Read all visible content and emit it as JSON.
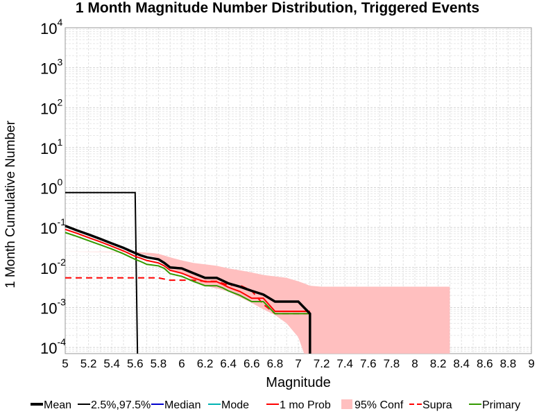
{
  "chart_data": {
    "type": "line",
    "title": "1 Month Magnitude Number Distribution, Triggered Events",
    "xlabel": "Magnitude",
    "ylabel": "1 Month Cumulative Number",
    "xlim": [
      5,
      9
    ],
    "ylim": [
      7e-05,
      10000
    ],
    "yscale": "log",
    "grid": true,
    "x_ticks": [
      5,
      5.2,
      5.4,
      5.6,
      5.8,
      6,
      6.2,
      6.4,
      6.6,
      6.8,
      7,
      7.2,
      7.4,
      7.6,
      7.8,
      8,
      8.2,
      8.4,
      8.6,
      8.8,
      9
    ],
    "x_tick_labels": [
      "5",
      "5.2",
      "5.4",
      "5.6",
      "5.8",
      "6",
      "6.2",
      "6.4",
      "6.6",
      "6.8",
      "7",
      "7.2",
      "7.4",
      "7.6",
      "7.8",
      "8",
      "8.2",
      "8.4",
      "8.6",
      "8.8",
      "9"
    ],
    "y_tick_exponents": [
      -4,
      -3,
      -2,
      -1,
      0,
      1,
      2,
      3,
      4
    ],
    "y_tick_base": "10",
    "legend_position": "bottom",
    "legend": [
      {
        "label": "Mean",
        "style": "thick-line",
        "color": "#000000"
      },
      {
        "label": "2.5%,97.5%",
        "style": "line",
        "color": "#000000"
      },
      {
        "label": "Median",
        "style": "line",
        "color": "#0000cc"
      },
      {
        "label": "Mode",
        "style": "line",
        "color": "#00b3b3"
      },
      {
        "label": "1 mo Prob",
        "style": "line",
        "color": "#ff0000"
      },
      {
        "label": "95% Conf",
        "style": "fill",
        "color": "#ffbfbf"
      },
      {
        "label": "Supra",
        "style": "dashed-line",
        "color": "#ff0000"
      },
      {
        "label": "Primary",
        "style": "line",
        "color": "#339900"
      }
    ],
    "series": [
      {
        "name": "95% Conf",
        "kind": "band",
        "color": "#ffbfbf",
        "x": [
          5.0,
          5.6,
          5.65,
          5.75,
          5.8,
          5.85,
          5.9,
          6.0,
          6.05,
          6.1,
          6.2,
          6.3,
          6.4,
          6.5,
          6.6,
          6.7,
          6.8,
          6.9,
          7.0,
          7.05,
          7.1,
          7.2,
          7.3,
          7.4,
          7.6,
          7.8,
          8.0,
          8.2,
          8.3
        ],
        "upper": [
          0.025,
          0.025,
          0.024,
          0.023,
          0.022,
          0.02,
          0.018,
          0.015,
          0.014,
          0.013,
          0.012,
          0.011,
          0.0095,
          0.0085,
          0.0075,
          0.0065,
          0.006,
          0.0055,
          0.0045,
          0.004,
          0.0035,
          0.0033,
          0.0033,
          0.0033,
          0.0033,
          0.0033,
          0.0033,
          0.0033,
          0.0033
        ],
        "lower": [
          0.025,
          0.024,
          0.022,
          0.019,
          0.017,
          0.012,
          0.009,
          0.007,
          0.006,
          0.0045,
          0.0035,
          0.003,
          0.0025,
          0.0018,
          0.0013,
          0.0009,
          0.00065,
          0.0004,
          0.00018,
          7e-05,
          7e-05,
          7e-05,
          7e-05,
          7e-05,
          7e-05,
          7e-05,
          7e-05,
          7e-05,
          7e-05
        ]
      },
      {
        "name": "2.5%,97.5%",
        "kind": "line",
        "color": "#000000",
        "width": 2,
        "x": [
          5.0,
          5.6,
          5.62
        ],
        "values": [
          0.75,
          0.75,
          7e-05
        ]
      },
      {
        "name": "Supra",
        "kind": "line",
        "color": "#ff0000",
        "width": 2,
        "dash": "9,6",
        "x": [
          5.0,
          5.8,
          5.9,
          6.1,
          6.2,
          6.3,
          6.4,
          6.5,
          6.6,
          6.7,
          6.8,
          7.1
        ],
        "values": [
          0.0055,
          0.0055,
          0.0048,
          0.0048,
          0.0045,
          0.0045,
          0.0036,
          0.0036,
          0.0026,
          0.0012,
          0.0007,
          0.0007
        ]
      },
      {
        "name": "Primary",
        "kind": "line",
        "color": "#339900",
        "width": 2,
        "x": [
          5.0,
          5.1,
          5.2,
          5.3,
          5.4,
          5.5,
          5.6,
          5.65,
          5.7,
          5.8,
          5.85,
          5.9,
          6.0,
          6.1,
          6.2,
          6.3,
          6.35,
          6.4,
          6.5,
          6.6,
          6.7,
          6.8,
          7.0,
          7.1
        ],
        "values": [
          0.075,
          0.06,
          0.047,
          0.037,
          0.029,
          0.022,
          0.016,
          0.014,
          0.012,
          0.011,
          0.0095,
          0.007,
          0.006,
          0.0045,
          0.0035,
          0.0035,
          0.0031,
          0.0026,
          0.002,
          0.0014,
          0.0014,
          0.0007,
          0.0007,
          0.0007
        ]
      },
      {
        "name": "1 mo Prob",
        "kind": "line",
        "color": "#ff0000",
        "width": 2,
        "x": [
          5.0,
          5.1,
          5.2,
          5.3,
          5.4,
          5.5,
          5.6,
          5.65,
          5.7,
          5.8,
          5.85,
          5.9,
          6.0,
          6.1,
          6.2,
          6.3,
          6.35,
          6.4,
          6.5,
          6.6,
          6.7,
          6.8,
          7.0,
          7.1
        ],
        "values": [
          0.09,
          0.072,
          0.056,
          0.044,
          0.034,
          0.026,
          0.019,
          0.017,
          0.015,
          0.013,
          0.011,
          0.0085,
          0.0072,
          0.0055,
          0.0044,
          0.0044,
          0.0038,
          0.0032,
          0.0025,
          0.0017,
          0.0017,
          0.0008,
          0.0008,
          0.0008
        ]
      },
      {
        "name": "Mean",
        "kind": "line",
        "color": "#000000",
        "width": 3.5,
        "x": [
          5.0,
          5.1,
          5.2,
          5.3,
          5.4,
          5.5,
          5.6,
          5.65,
          5.7,
          5.8,
          5.85,
          5.9,
          6.0,
          6.1,
          6.2,
          6.3,
          6.35,
          6.4,
          6.5,
          6.6,
          6.7,
          6.8,
          7.0,
          7.1,
          7.1
        ],
        "values": [
          0.11,
          0.085,
          0.067,
          0.052,
          0.04,
          0.031,
          0.023,
          0.02,
          0.018,
          0.016,
          0.013,
          0.01,
          0.0095,
          0.0072,
          0.0055,
          0.0055,
          0.0047,
          0.004,
          0.0033,
          0.0026,
          0.0021,
          0.0014,
          0.0014,
          0.0007,
          7e-05
        ]
      }
    ]
  }
}
